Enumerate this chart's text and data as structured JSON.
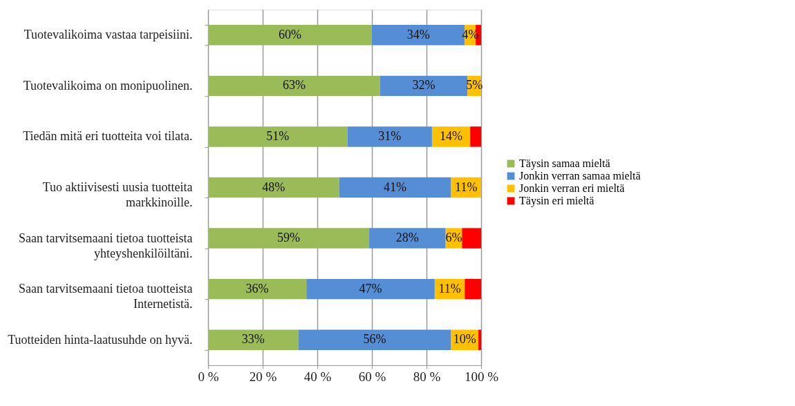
{
  "chart_data": {
    "type": "bar",
    "orientation": "horizontal",
    "stacked": true,
    "categories": [
      "Tuotevalikoima vastaa tarpeisiini.",
      "Tuotevalikoima on monipuolinen.",
      "Tiedän mitä eri tuotteita voi tilata.",
      "Tuo aktiivisesti uusia tuotteita markkinoille.",
      "Saan tarvitsemaani tietoa tuotteista yhteyshenkilöiltäni.",
      "Saan tarvitsemaani tietoa tuotteista Internetistä.",
      "Tuotteiden hinta-laatusuhde on hyvä."
    ],
    "series": [
      {
        "name": "Täysin samaa mieltä",
        "color": "#9bbb59",
        "values": [
          60,
          63,
          51,
          48,
          59,
          36,
          33
        ],
        "value_labels": [
          "60%",
          "63%",
          "51%",
          "48%",
          "59%",
          "36%",
          "33%"
        ]
      },
      {
        "name": "Jonkin verran samaa mieltä",
        "color": "#558ed5",
        "values": [
          34,
          32,
          31,
          41,
          28,
          47,
          56
        ],
        "value_labels": [
          "34%",
          "32%",
          "31%",
          "41%",
          "28%",
          "47%",
          "56%"
        ]
      },
      {
        "name": "Jonkin verran eri mieltä",
        "color": "#ffc000",
        "values": [
          4,
          5,
          14,
          11,
          6,
          11,
          10
        ],
        "value_labels": [
          "4%",
          "5%",
          "14%",
          "11%",
          "6%",
          "11%",
          "10%"
        ]
      },
      {
        "name": "Täysin eri mieltä",
        "color": "#ff0000",
        "values": [
          2,
          0,
          4,
          0,
          7,
          6,
          1
        ],
        "value_labels": [
          null,
          null,
          null,
          null,
          null,
          null,
          null
        ]
      }
    ],
    "xlim": [
      0,
      100
    ],
    "xticks": [
      {
        "value": 0,
        "label": "0 %"
      },
      {
        "value": 20,
        "label": "20 %"
      },
      {
        "value": 40,
        "label": "40 %"
      },
      {
        "value": 60,
        "label": "60 %"
      },
      {
        "value": 80,
        "label": "80 %"
      },
      {
        "value": 100,
        "label": "100 %"
      }
    ],
    "grid": "x",
    "legend": "right"
  }
}
